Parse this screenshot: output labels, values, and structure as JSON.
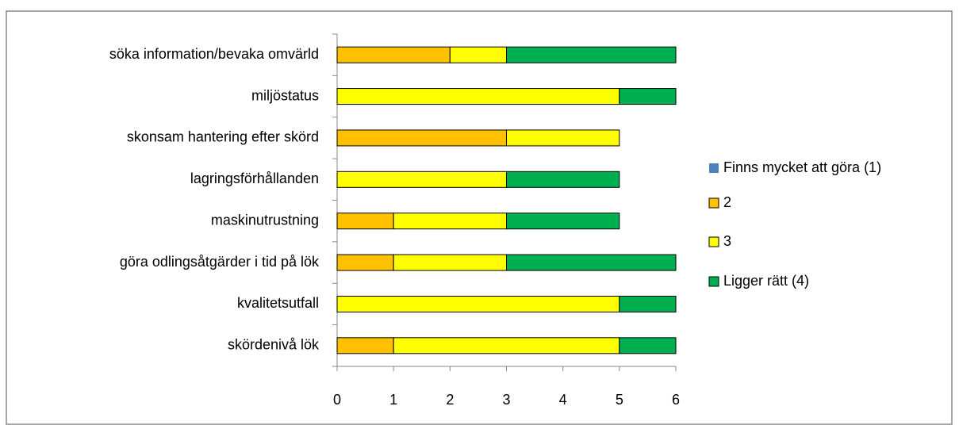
{
  "chart_data": {
    "type": "stacked-barh",
    "categories": [
      "söka information/bevaka omvärld",
      "miljöstatus",
      "skonsam hantering efter skörd",
      "lagringsförhållanden",
      "maskinutrustning",
      "göra odlingsåtgärder i tid på lök",
      "kvalitetsutfall",
      "skördenivå lök"
    ],
    "series": [
      {
        "name": "Finns mycket att göra (1)",
        "color": "#4f81bd",
        "values": [
          0,
          0,
          0,
          0,
          0,
          0,
          0,
          0
        ]
      },
      {
        "name": "2",
        "color": "#ffc000",
        "values": [
          2,
          0,
          3,
          0,
          1,
          1,
          0,
          1
        ]
      },
      {
        "name": "3",
        "color": "#ffff00",
        "values": [
          1,
          5,
          2,
          3,
          2,
          2,
          5,
          4
        ]
      },
      {
        "name": "Ligger rätt (4)",
        "color": "#00b050",
        "values": [
          3,
          1,
          0,
          2,
          2,
          3,
          1,
          1
        ]
      }
    ],
    "xlim": [
      0,
      6
    ],
    "xticks": [
      0,
      1,
      2,
      3,
      4,
      5,
      6
    ],
    "grid": false,
    "legend": "right"
  }
}
